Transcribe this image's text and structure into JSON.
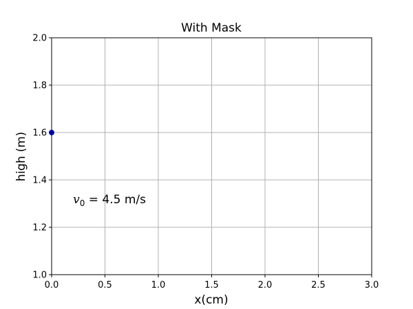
{
  "chart_data": {
    "type": "scatter",
    "title": "With Mask",
    "xlabel": "x(cm)",
    "ylabel": "high (m)",
    "xlim": [
      0.0,
      3.0
    ],
    "ylim": [
      1.0,
      2.0
    ],
    "xticks": [
      0.0,
      0.5,
      1.0,
      1.5,
      2.0,
      2.5,
      3.0
    ],
    "yticks": [
      1.0,
      1.2,
      1.4,
      1.6,
      1.8,
      2.0
    ],
    "xtick_labels": [
      "0.0",
      "0.5",
      "1.0",
      "1.5",
      "2.0",
      "2.5",
      "3.0"
    ],
    "ytick_labels": [
      "1.0",
      "1.2",
      "1.4",
      "1.6",
      "1.8",
      "2.0"
    ],
    "grid": true,
    "series": [
      {
        "color": "#0000cc",
        "points": [
          {
            "x": 0.0,
            "y": 1.6
          }
        ]
      }
    ],
    "annotation": {
      "symbol": "v",
      "subscript": "0",
      "text": " = 4.5 m/s",
      "x": 0.22,
      "y": 1.31
    },
    "colors": {
      "grid": "#b0b0b0",
      "axes": "#000000",
      "point": "#0000cc"
    }
  }
}
